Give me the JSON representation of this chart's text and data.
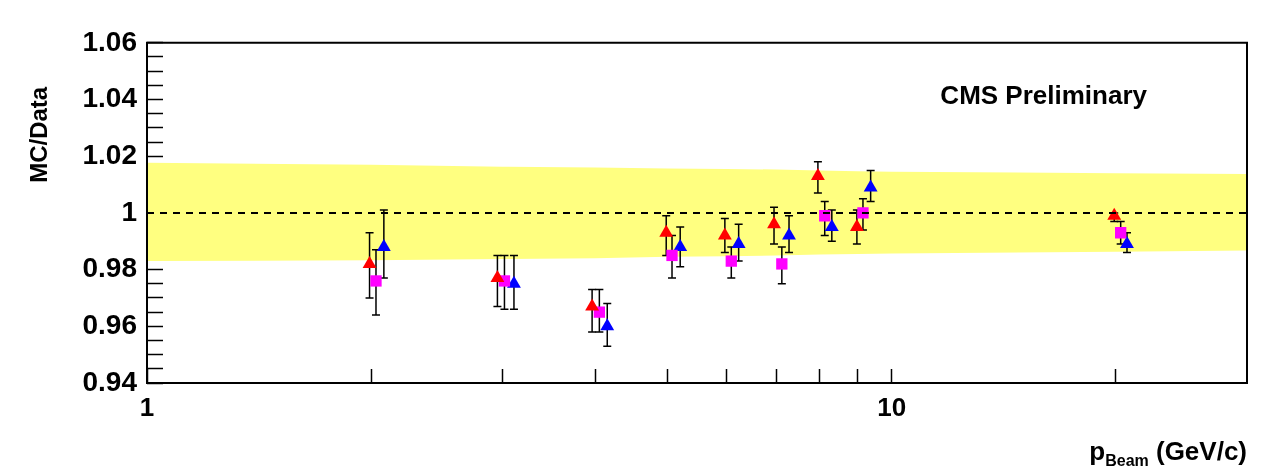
{
  "chart_data": {
    "type": "scatter",
    "xlabel": "p$_{Beam}$ (GeV/c)",
    "ylabel": "MC/Data",
    "annotations": [
      "CMS Preliminary"
    ],
    "log": "x",
    "grid": false,
    "legend": false,
    "xlim": [
      1,
      30
    ],
    "xticks": [
      1,
      {
        "value": 2,
        "label": null
      },
      {
        "value": 3,
        "label": null
      },
      {
        "value": 4,
        "label": null
      },
      {
        "value": 5,
        "label": null
      },
      {
        "value": 6,
        "label": null
      },
      {
        "value": 7,
        "label": null
      },
      {
        "value": 8,
        "label": null
      },
      {
        "value": 9,
        "label": null
      },
      10,
      {
        "value": 20,
        "label": null
      }
    ],
    "ylim": [
      0.94,
      1.06
    ],
    "yticks": [
      0.94,
      {
        "value": 0.945,
        "label": null
      },
      {
        "value": 0.95,
        "label": null
      },
      {
        "value": 0.955,
        "label": null
      },
      0.96,
      {
        "value": 0.965,
        "label": null
      },
      {
        "value": 0.97,
        "label": null
      },
      {
        "value": 0.975,
        "label": null
      },
      0.98,
      {
        "value": 0.985,
        "label": null
      },
      {
        "value": 0.99,
        "label": null
      },
      {
        "value": 0.995,
        "label": null
      },
      1,
      {
        "value": 1.005,
        "label": null
      },
      {
        "value": 1.01,
        "label": null
      },
      {
        "value": 1.015,
        "label": null
      },
      1.02,
      {
        "value": 1.025,
        "label": null
      },
      {
        "value": 1.03,
        "label": null
      },
      {
        "value": 1.035,
        "label": null
      },
      1.04,
      {
        "value": 1.045,
        "label": null
      },
      {
        "value": 1.05,
        "label": null
      },
      {
        "value": 1.055,
        "label": null
      },
      1.06
    ],
    "series": [
      {
        "type": "line",
        "color": "#000000",
        "line_style": "dashed",
        "marker": "none",
        "x": [
          1,
          2,
          3,
          4,
          5,
          6,
          7,
          8,
          9,
          10,
          20,
          30
        ],
        "values": [
          1,
          1,
          1,
          1,
          1,
          1,
          1,
          1,
          1,
          1,
          1,
          1
        ],
        "lower": [
          0.983,
          0.9833,
          0.9837,
          0.984,
          0.9845,
          0.9847,
          0.985,
          0.9853,
          0.9855,
          0.9857,
          0.9863,
          0.9867
        ],
        "upper": [
          1.0177,
          1.017,
          1.0163,
          1.016,
          1.0157,
          1.0155,
          1.0153,
          1.015,
          1.0147,
          1.0145,
          1.014,
          1.0137
        ]
      },
      {
        "type": "scatter",
        "color": "#ff0000",
        "marker": "triangle",
        "x": [
          1.99,
          2.955,
          3.96,
          4.98,
          5.97,
          6.95,
          7.96,
          8.98,
          19.9
        ],
        "values": [
          0.982,
          0.977,
          0.967,
          0.993,
          0.992,
          0.996,
          1.013,
          0.995,
          0.999
        ],
        "errors": [
          [
            0.97,
            0.993
          ],
          [
            0.967,
            0.985
          ],
          [
            0.958,
            0.973
          ],
          [
            0.985,
            0.999
          ],
          [
            0.986,
            0.998
          ],
          [
            0.989,
            1.002
          ],
          [
            1.007,
            1.018
          ],
          [
            0.989,
            1.001
          ],
          [
            0.997,
            1.0
          ]
        ]
      },
      {
        "type": "scatter",
        "color": "#ff00ff",
        "marker": "square",
        "x": [
          2.03,
          3.02,
          4.05,
          5.07,
          6.09,
          7.12,
          8.13,
          9.15,
          20.3
        ],
        "values": [
          0.976,
          0.976,
          0.965,
          0.985,
          0.983,
          0.982,
          0.999,
          1.0,
          0.993
        ],
        "errors": [
          [
            0.964,
            0.987
          ],
          [
            0.966,
            0.985
          ],
          [
            0.958,
            0.973
          ],
          [
            0.977,
            0.992
          ],
          [
            0.977,
            0.988
          ],
          [
            0.975,
            0.988
          ],
          [
            0.992,
            1.004
          ],
          [
            0.994,
            1.005
          ],
          [
            0.989,
            0.997
          ]
        ]
      },
      {
        "type": "scatter",
        "color": "#0000ff",
        "marker": "triangle",
        "x": [
          2.08,
          3.11,
          4.15,
          5.2,
          6.23,
          7.28,
          8.31,
          9.37,
          20.7
        ],
        "values": [
          0.988,
          0.975,
          0.96,
          0.988,
          0.989,
          0.992,
          0.995,
          1.009,
          0.989
        ],
        "errors": [
          [
            0.977,
            1.001
          ],
          [
            0.966,
            0.985
          ],
          [
            0.953,
            0.968
          ],
          [
            0.981,
            0.995
          ],
          [
            0.983,
            0.996
          ],
          [
            0.986,
            0.999
          ],
          [
            0.99,
            1.001
          ],
          [
            1.004,
            1.015
          ],
          [
            0.986,
            0.993
          ]
        ]
      }
    ]
  }
}
